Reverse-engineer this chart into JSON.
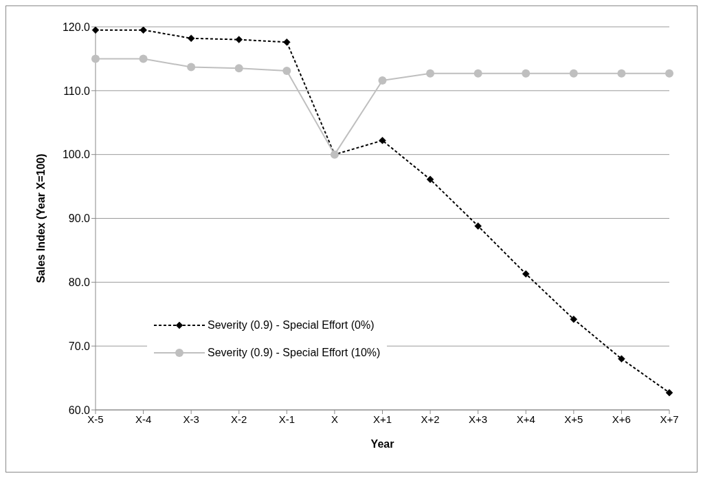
{
  "chart_data": {
    "type": "line",
    "xlabel": "Year",
    "ylabel": "Sales Index (Year X=100)",
    "categories": [
      "X-5",
      "X-4",
      "X-3",
      "X-2",
      "X-1",
      "X",
      "X+1",
      "X+2",
      "X+3",
      "X+4",
      "X+5",
      "X+6",
      "X+7"
    ],
    "series": [
      {
        "name": "Severity (0.9) - Special Effort (0%)",
        "color": "#000000",
        "marker": "diamond",
        "line_style": "dashed",
        "values": [
          119.5,
          119.5,
          118.2,
          118.0,
          117.6,
          100.0,
          102.2,
          96.1,
          88.8,
          81.3,
          74.2,
          68.0,
          62.7
        ]
      },
      {
        "name": "Severity (0.9) - Special Effort (10%)",
        "color": "#bfbfbf",
        "marker": "circle",
        "line_style": "solid",
        "values": [
          115.0,
          115.0,
          113.7,
          113.5,
          113.1,
          100.0,
          111.6,
          112.7,
          112.7,
          112.7,
          112.7,
          112.7,
          112.7
        ]
      }
    ],
    "ylim": [
      60,
      120
    ],
    "yticks": [
      {
        "value": 60,
        "label": "60.0"
      },
      {
        "value": 70,
        "label": "70.0"
      },
      {
        "value": 80,
        "label": "80.0"
      },
      {
        "value": 90,
        "label": "90.0"
      },
      {
        "value": 100,
        "label": "100.0"
      },
      {
        "value": 110,
        "label": "110.0"
      },
      {
        "value": 120,
        "label": "120.0"
      }
    ],
    "grid": "y",
    "legend": "bottom left"
  }
}
